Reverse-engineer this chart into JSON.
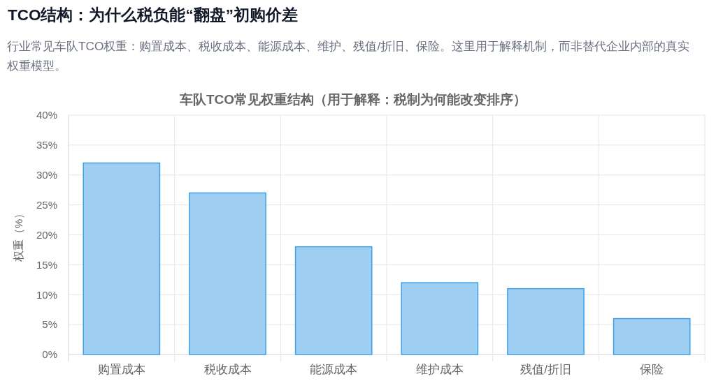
{
  "chart_data": {
    "type": "bar",
    "title": "TCO结构：为什么税负能“翻盘”初购价差",
    "subtitle": "行业常见车队TCO权重：购置成本、税收成本、能源成本、维护、残值/折旧、保险。这里用于解释机制，而非替代企业内部的真实权重模型。",
    "annotations": [
      "车队TCO常见权重结构（用于解释：税制为何能改变排序）"
    ],
    "ylabel": "权重（%）",
    "categories": [
      "购置成本",
      "税收成本",
      "能源成本",
      "维护成本",
      "残值/折旧",
      "保险"
    ],
    "values": [
      32,
      27,
      18,
      12,
      11,
      6
    ],
    "color": "#9ecff3",
    "ylim": [
      0,
      40
    ],
    "yticks": [
      {
        "value": 0,
        "label": "0%"
      },
      {
        "value": 5,
        "label": "5%"
      },
      {
        "value": 10,
        "label": "10%"
      },
      {
        "value": 15,
        "label": "15%"
      },
      {
        "value": 20,
        "label": "20%"
      },
      {
        "value": 25,
        "label": "25%"
      },
      {
        "value": 30,
        "label": "30%"
      },
      {
        "value": 35,
        "label": "35%"
      },
      {
        "value": 40,
        "label": "40%"
      }
    ],
    "grid": true
  }
}
